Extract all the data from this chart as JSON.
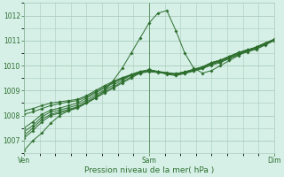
{
  "title": "",
  "xlabel": "Pression niveau de la mer( hPa )",
  "ylabel": "",
  "bg_color": "#d6f0e8",
  "grid_color": "#aaccbb",
  "line_color": "#2d6e2d",
  "tick_label_color": "#2d6e2d",
  "axis_label_color": "#2d6e2d",
  "ylim": [
    1006.5,
    1012.5
  ],
  "yticks": [
    1007,
    1008,
    1009,
    1010,
    1011,
    1012
  ],
  "xtick_positions": [
    0,
    0.5,
    1.0
  ],
  "xtick_labels": [
    "Ven",
    "Sam",
    "Dim"
  ],
  "series": [
    [
      1006.6,
      1007.0,
      1007.3,
      1007.7,
      1008.0,
      1008.2,
      1008.35,
      1008.5,
      1008.7,
      1009.0,
      1009.4,
      1009.9,
      1010.5,
      1011.1,
      1011.7,
      1012.1,
      1012.2,
      1011.4,
      1010.5,
      1009.9,
      1009.7,
      1009.8,
      1010.0,
      1010.2,
      1010.4,
      1010.6,
      1010.75,
      1010.9,
      1011.0
    ],
    [
      1007.1,
      1007.4,
      1007.75,
      1008.0,
      1008.1,
      1008.2,
      1008.3,
      1008.5,
      1008.7,
      1008.9,
      1009.1,
      1009.3,
      1009.5,
      1009.7,
      1009.85,
      1009.75,
      1009.65,
      1009.6,
      1009.68,
      1009.78,
      1009.88,
      1010.02,
      1010.12,
      1010.28,
      1010.42,
      1010.55,
      1010.65,
      1010.82,
      1011.0
    ],
    [
      1007.2,
      1007.5,
      1007.85,
      1008.05,
      1008.15,
      1008.25,
      1008.35,
      1008.55,
      1008.75,
      1008.95,
      1009.15,
      1009.35,
      1009.55,
      1009.72,
      1009.82,
      1009.75,
      1009.68,
      1009.63,
      1009.7,
      1009.8,
      1009.9,
      1010.05,
      1010.15,
      1010.3,
      1010.45,
      1010.57,
      1010.67,
      1010.84,
      1011.0
    ],
    [
      1007.35,
      1007.6,
      1007.95,
      1008.15,
      1008.22,
      1008.32,
      1008.42,
      1008.62,
      1008.82,
      1009.02,
      1009.22,
      1009.42,
      1009.62,
      1009.75,
      1009.82,
      1009.76,
      1009.7,
      1009.65,
      1009.72,
      1009.82,
      1009.92,
      1010.08,
      1010.18,
      1010.33,
      1010.48,
      1010.6,
      1010.7,
      1010.87,
      1011.02
    ],
    [
      1007.5,
      1007.75,
      1008.05,
      1008.22,
      1008.3,
      1008.4,
      1008.5,
      1008.7,
      1008.9,
      1009.1,
      1009.3,
      1009.5,
      1009.65,
      1009.77,
      1009.83,
      1009.77,
      1009.72,
      1009.68,
      1009.75,
      1009.85,
      1009.95,
      1010.12,
      1010.22,
      1010.37,
      1010.52,
      1010.63,
      1010.73,
      1010.9,
      1011.05
    ],
    [
      1008.05,
      1008.15,
      1008.28,
      1008.4,
      1008.48,
      1008.55,
      1008.6,
      1008.75,
      1008.95,
      1009.15,
      1009.32,
      1009.48,
      1009.6,
      1009.7,
      1009.75,
      1009.72,
      1009.68,
      1009.65,
      1009.73,
      1009.83,
      1009.93,
      1010.1,
      1010.2,
      1010.35,
      1010.5,
      1010.62,
      1010.72,
      1010.88,
      1011.02
    ],
    [
      1008.2,
      1008.28,
      1008.4,
      1008.5,
      1008.55,
      1008.6,
      1008.65,
      1008.8,
      1009.0,
      1009.2,
      1009.37,
      1009.52,
      1009.62,
      1009.72,
      1009.78,
      1009.75,
      1009.7,
      1009.67,
      1009.75,
      1009.85,
      1009.95,
      1010.12,
      1010.22,
      1010.37,
      1010.52,
      1010.63,
      1010.73,
      1010.9,
      1011.05
    ]
  ]
}
